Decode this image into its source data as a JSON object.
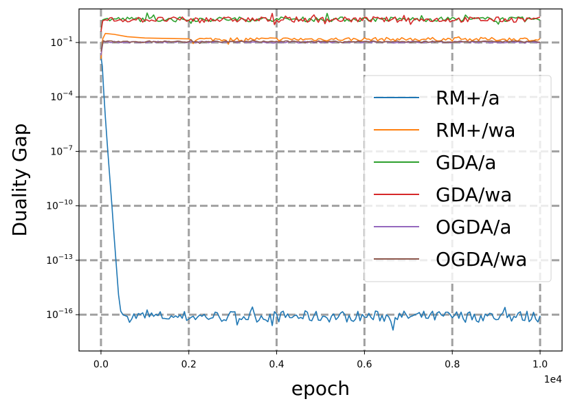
{
  "chart_data": {
    "type": "line",
    "title": "",
    "xlabel": "epoch",
    "ylabel": "Duality Gap",
    "x_offset_label": "1e4",
    "y_scale": "log",
    "x_ticks": [
      0.0,
      0.2,
      0.4,
      0.6,
      0.8,
      1.0
    ],
    "x_tick_labels": [
      "0.0",
      "0.2",
      "0.4",
      "0.6",
      "0.8",
      "1.0"
    ],
    "y_ticks": [
      {
        "mantissa": "10",
        "exponent": "−1"
      },
      {
        "mantissa": "10",
        "exponent": "−4"
      },
      {
        "mantissa": "10",
        "exponent": "−7"
      },
      {
        "mantissa": "10",
        "exponent": "−10"
      },
      {
        "mantissa": "10",
        "exponent": "−13"
      },
      {
        "mantissa": "10",
        "exponent": "−16"
      }
    ],
    "y_tick_exponents": [
      -1,
      -4,
      -7,
      -10,
      -13,
      -16
    ],
    "xlim": [
      -0.05,
      1.05
    ],
    "ylim_log10": [
      -18,
      0.85
    ],
    "grid": true,
    "legend_position": "center-right",
    "series": [
      {
        "name": "RM+/a",
        "color": "#1f77b4",
        "points_log10": [
          [
            0.0,
            -1.8
          ],
          [
            0.003,
            -2.3
          ],
          [
            0.006,
            -3.6
          ],
          [
            0.01,
            -5.1
          ],
          [
            0.015,
            -6.8
          ],
          [
            0.02,
            -8.4
          ],
          [
            0.025,
            -10.0
          ],
          [
            0.03,
            -11.7
          ],
          [
            0.035,
            -13.3
          ],
          [
            0.04,
            -14.9
          ],
          [
            0.045,
            -15.8
          ],
          [
            0.05,
            -16.0
          ],
          [
            0.06,
            -16.1
          ]
        ],
        "tail_from": 0.06,
        "tail_mean_log10": -16.1,
        "tail_spread": 0.32,
        "step": 0.005
      },
      {
        "name": "RM+/wa",
        "color": "#ff7f0e",
        "points_log10": [
          [
            0.0,
            -1.9
          ],
          [
            0.004,
            -0.8
          ],
          [
            0.01,
            -0.5
          ],
          [
            0.03,
            -0.55
          ],
          [
            0.06,
            -0.68
          ],
          [
            0.1,
            -0.75
          ],
          [
            0.2,
            -0.8
          ]
        ],
        "tail_from": 0.2,
        "tail_mean_log10": -0.82,
        "tail_spread": 0.1,
        "step": 0.005
      },
      {
        "name": "GDA/a",
        "color": "#2ca02c",
        "points_log10": [
          [
            0.0,
            -0.3
          ],
          [
            0.004,
            0.25
          ],
          [
            0.01,
            0.3
          ]
        ],
        "tail_from": 0.01,
        "tail_mean_log10": 0.28,
        "tail_spread": 0.13,
        "step": 0.005
      },
      {
        "name": "GDA/wa",
        "color": "#d62728",
        "points_log10": [
          [
            0.0,
            -0.4
          ],
          [
            0.004,
            0.2
          ],
          [
            0.01,
            0.25
          ]
        ],
        "tail_from": 0.01,
        "tail_mean_log10": 0.26,
        "tail_spread": 0.15,
        "step": 0.005
      },
      {
        "name": "OGDA/a",
        "color": "#9467bd",
        "points_log10": [
          [
            0.0,
            -1.7
          ],
          [
            0.005,
            -0.9
          ],
          [
            0.01,
            -0.98
          ]
        ],
        "tail_from": 0.01,
        "tail_mean_log10": -0.98,
        "tail_spread": 0.05,
        "step": 0.005
      },
      {
        "name": "OGDA/wa",
        "color": "#8c564b",
        "points_log10": [
          [
            0.0,
            -1.5
          ],
          [
            0.005,
            -0.9
          ],
          [
            0.01,
            -0.95
          ]
        ],
        "tail_from": 0.01,
        "tail_mean_log10": -0.95,
        "tail_spread": 0.04,
        "step": 0.005
      }
    ]
  }
}
